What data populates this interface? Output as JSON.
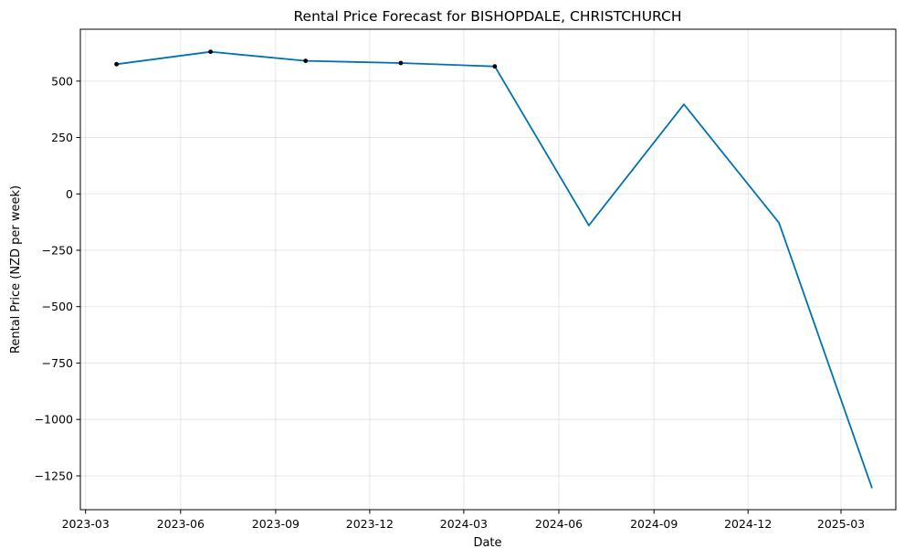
{
  "chart_data": {
    "type": "line",
    "title": "Rental Price Forecast for BISHOPDALE, CHRISTCHURCH",
    "xlabel": "Date",
    "ylabel": "Rental Price (NZD per week)",
    "xlim": [
      "2023-02-24",
      "2025-04-23"
    ],
    "ylim": [
      -1400,
      730
    ],
    "x_ticks": [
      "2023-03-01",
      "2023-06-01",
      "2023-09-01",
      "2023-12-01",
      "2024-03-01",
      "2024-06-01",
      "2024-09-01",
      "2024-12-01",
      "2025-03-01"
    ],
    "x_tick_labels": [
      "2023-03",
      "2023-06",
      "2023-09",
      "2023-12",
      "2024-03",
      "2024-06",
      "2024-09",
      "2024-12",
      "2025-03"
    ],
    "y_ticks": [
      500,
      250,
      0,
      -250,
      -500,
      -750,
      -1000,
      -1250
    ],
    "y_tick_labels": [
      "500",
      "250",
      "0",
      "−250",
      "−500",
      "−750",
      "−1000",
      "−1250"
    ],
    "grid": true,
    "series": [
      {
        "kind": "observed",
        "color": "#000000",
        "x": [
          "2023-03-31",
          "2023-06-30",
          "2023-09-30",
          "2023-12-31",
          "2024-03-31"
        ],
        "y": [
          575,
          630,
          590,
          580,
          565
        ]
      },
      {
        "kind": "forecast",
        "color": "#0072b2",
        "x": [
          "2023-03-31",
          "2023-06-30",
          "2023-09-30",
          "2023-12-31",
          "2024-03-31",
          "2024-06-30",
          "2024-09-30",
          "2024-12-31",
          "2025-03-31"
        ],
        "y": [
          575,
          630,
          590,
          580,
          565,
          -140,
          397,
          -128,
          -1305
        ]
      }
    ]
  }
}
